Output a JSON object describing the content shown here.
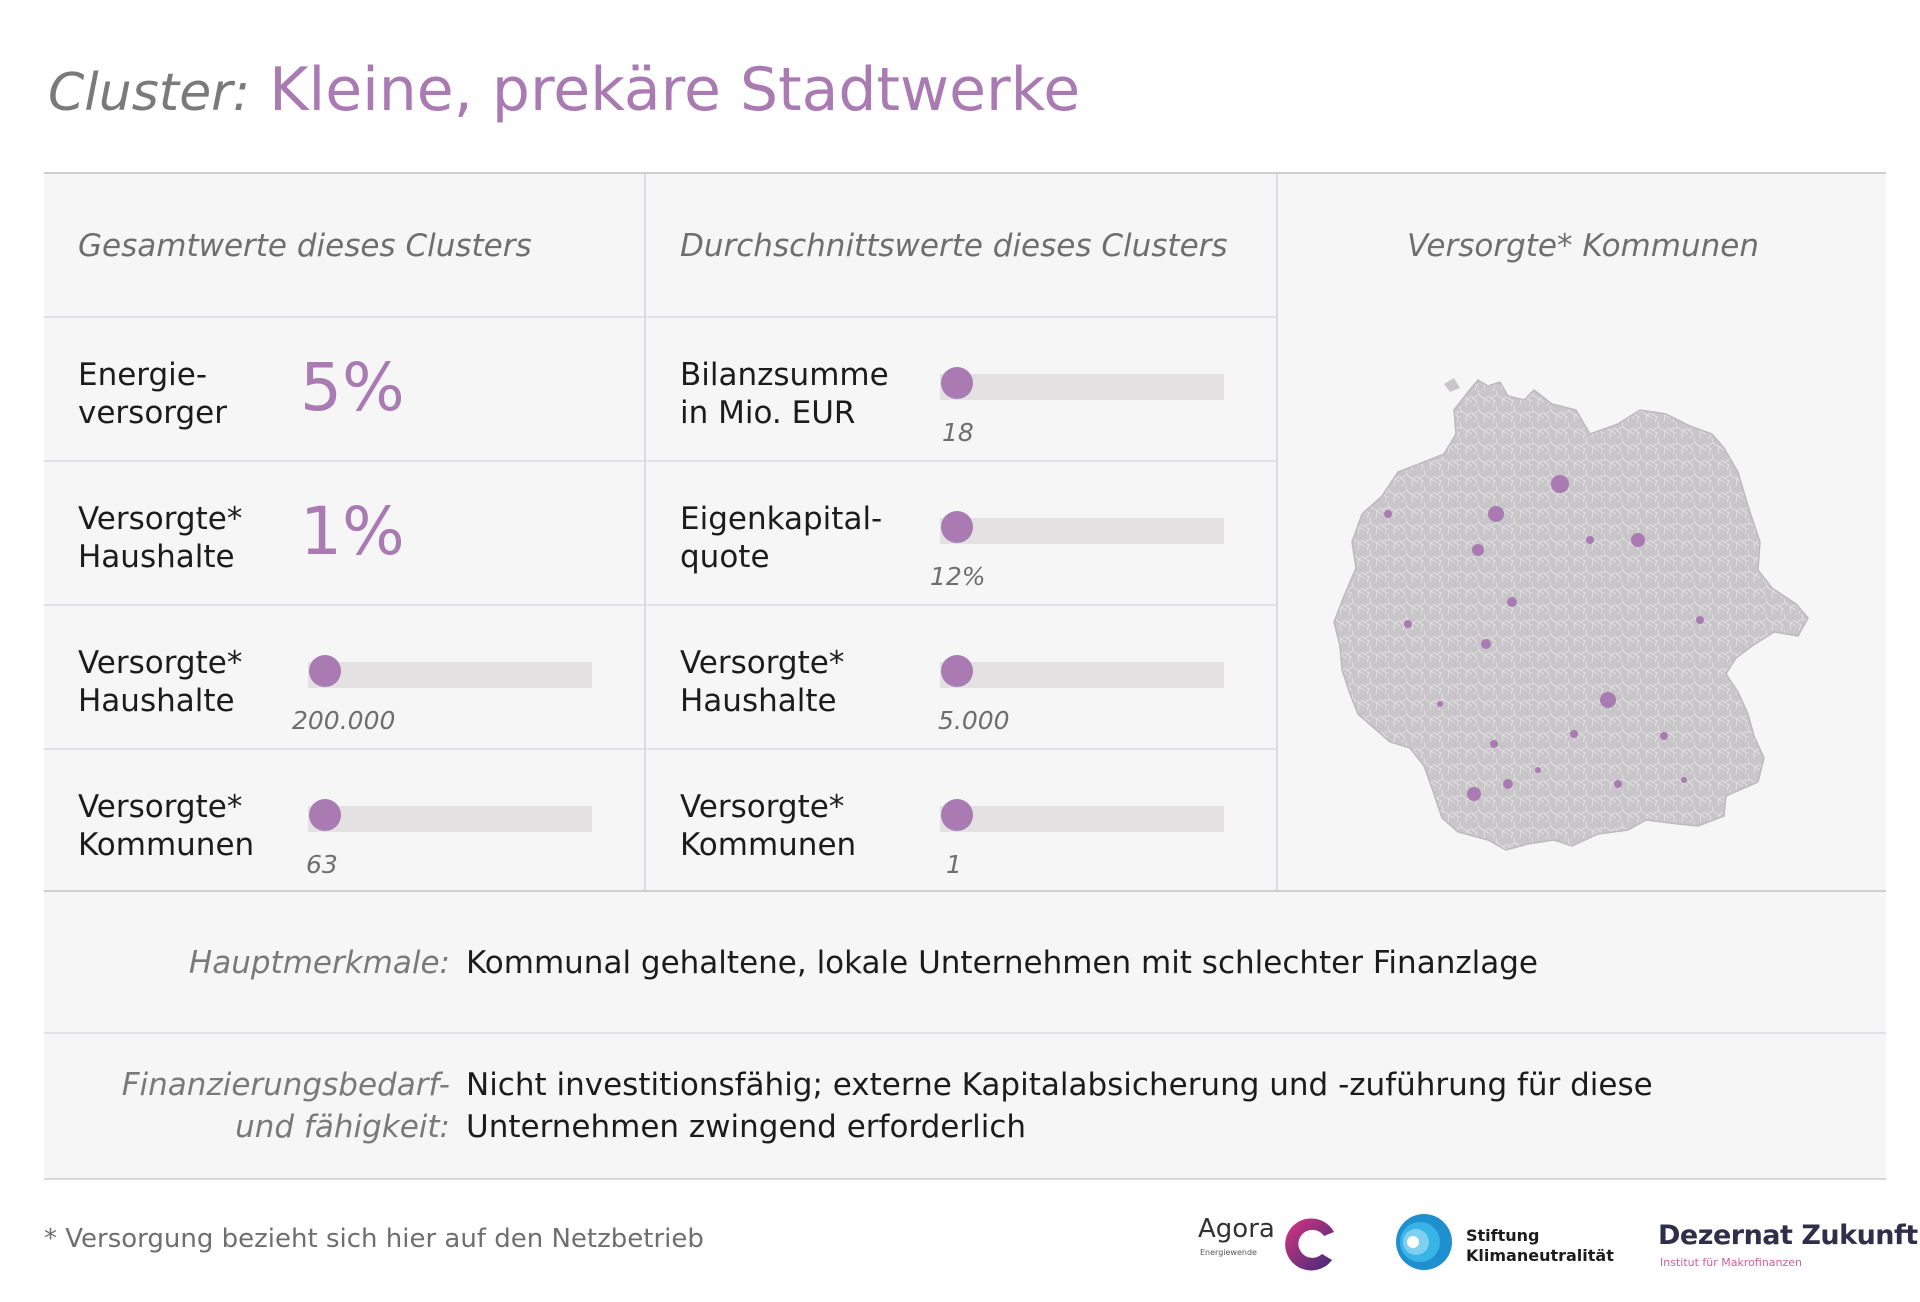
{
  "title": {
    "label": "Cluster:",
    "main": "Kleine, prekäre Stadtwerke"
  },
  "col1": {
    "header": "Gesamtwerte dieses Clusters",
    "rows": [
      {
        "label": "Energie-\nversorger",
        "value": "5%",
        "type": "big"
      },
      {
        "label": "Versorgte*\nHaushalte",
        "value": "1%",
        "type": "big"
      },
      {
        "label": "Versorgte*\nHaushalte",
        "value": "200.000",
        "type": "bar",
        "level": 0.06
      },
      {
        "label": "Versorgte*\nKommunen",
        "value": "63",
        "type": "bar",
        "level": 0.06
      }
    ]
  },
  "col2": {
    "header": "Durchschnittswerte dieses Clusters",
    "rows": [
      {
        "label": "Bilanzsumme\nin Mio. EUR",
        "value": "18",
        "type": "bar",
        "level": 0.06
      },
      {
        "label": "Eigenkapital-\nquote",
        "value": "12%",
        "type": "bar",
        "level": 0.06
      },
      {
        "label": "Versorgte*\nHaushalte",
        "value": "5.000",
        "type": "bar",
        "level": 0.06
      },
      {
        "label": "Versorgte*\nKommunen",
        "value": "1",
        "type": "bar",
        "level": 0.06
      }
    ]
  },
  "map": {
    "header": "Versorgte* Kommunen"
  },
  "info": [
    {
      "label": "Hauptmerkmale:",
      "text": "Kommunal gehaltene, lokale Unternehmen mit schlechter Finanzlage"
    },
    {
      "label": "Finanzierungsbedarf-\nund fähigkeit:",
      "text": "Nicht investitionsfähig; externe Kapitalabsicherung und -zuführung für diese\nUnternehmen zwingend erforderlich"
    }
  ],
  "footnote": "* Versorgung bezieht sich hier auf den Netzbetrieb",
  "logos": {
    "agora": "Agora",
    "agora_sub": "Energiewende",
    "stiftung": "Stiftung\nKlimaneutralität",
    "dezernat": "Dezernat Zukunft",
    "dezernat_sub": "Institut für Makrofinanzen"
  },
  "colors": {
    "accent": "#a97bb2",
    "track": "#e4e1e3",
    "panel": "#f6f6f7"
  }
}
